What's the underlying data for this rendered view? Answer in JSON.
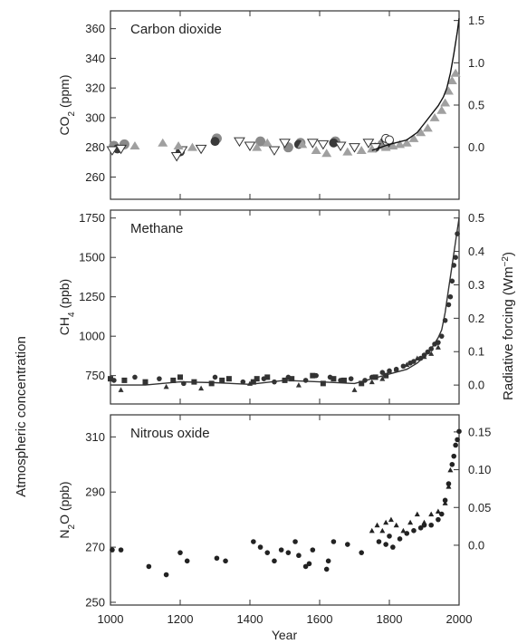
{
  "figure": {
    "left_label": "Atmospheric concentration",
    "right_label": "Radiative forcing  (Wm",
    "right_label_sup": "−2",
    "right_label_close": ")",
    "x_label": "Year"
  },
  "chart_data": [
    {
      "type": "scatter",
      "title": "Carbon dioxide",
      "ylabel_main": "CO",
      "ylabel_sub": "2",
      "ylabel_unit": "  (ppm)",
      "x_ticks": [
        1000,
        1200,
        1400,
        1600,
        1800,
        2000
      ],
      "x_tick_labels": [
        "1000",
        "1200",
        "1400",
        "1600",
        "1800",
        "2000"
      ],
      "xlim": [
        1000,
        2000
      ],
      "ylim": [
        245,
        372
      ],
      "y_ticks": [
        260,
        280,
        300,
        320,
        340,
        360
      ],
      "y_tick_labels": [
        "260",
        "280",
        "300",
        "320",
        "340",
        "360"
      ],
      "y2_ticks": [
        0.0,
        0.5,
        1.0,
        1.5
      ],
      "y2_tick_labels": [
        "0.0",
        "0.5",
        "1.0",
        "1.5"
      ],
      "y2_map": {
        "zero_at": 280,
        "per_unit": 57
      },
      "series": [
        {
          "marker": "circle-gray",
          "color": "#8a8a8a",
          "x": [
            1010,
            1040,
            1305,
            1430,
            1510,
            1545,
            1645,
            1780,
            1790
          ],
          "y": [
            281,
            282,
            286,
            284,
            280,
            283,
            284,
            282,
            281
          ]
        },
        {
          "marker": "circle-dark",
          "color": "#3a3a3a",
          "x": [
            1020,
            1200,
            1300,
            1540,
            1640,
            1760,
            1800
          ],
          "y": [
            279,
            277,
            284,
            282,
            283,
            280,
            283
          ]
        },
        {
          "marker": "triangle-down-open",
          "color": "#333333",
          "x": [
            1005,
            1030,
            1190,
            1205,
            1260,
            1370,
            1400,
            1470,
            1500,
            1580,
            1610,
            1660,
            1700,
            1740,
            1760,
            1790
          ],
          "y": [
            278,
            279,
            274,
            278,
            279,
            284,
            281,
            278,
            283,
            283,
            282,
            281,
            280,
            283,
            280,
            283
          ]
        },
        {
          "marker": "triangle-up-gray",
          "color": "#a0a0a0",
          "x": [
            1070,
            1150,
            1195,
            1235,
            1420,
            1450,
            1550,
            1590,
            1620,
            1680,
            1720,
            1750,
            1790,
            1810,
            1830,
            1850,
            1870,
            1890,
            1910,
            1930,
            1950,
            1960,
            1970,
            1980,
            1990
          ],
          "y": [
            281,
            283,
            281,
            280,
            280,
            283,
            282,
            278,
            276,
            277,
            278,
            279,
            280,
            281,
            282,
            283,
            286,
            290,
            293,
            300,
            305,
            310,
            318,
            325,
            330
          ]
        },
        {
          "marker": "circle-open",
          "color": "#333333",
          "x": [
            1790,
            1800
          ],
          "y": [
            286,
            285
          ]
        },
        {
          "marker": "line",
          "color": "#111111",
          "x": [
            1750,
            1800,
            1850,
            1880,
            1900,
            1920,
            1940,
            1955,
            1965,
            1975,
            1985,
            1995,
            2000
          ],
          "y": [
            278,
            282,
            285,
            290,
            296,
            302,
            308,
            314,
            320,
            330,
            343,
            358,
            367
          ]
        }
      ]
    },
    {
      "type": "scatter",
      "title": "Methane",
      "ylabel_main": "CH",
      "ylabel_sub": "4",
      "ylabel_unit": "  (ppb)",
      "x_ticks": [
        1000,
        1200,
        1400,
        1600,
        1800,
        2000
      ],
      "x_tick_labels": [
        "1000",
        "1200",
        "1400",
        "1600",
        "1800",
        "2000"
      ],
      "xlim": [
        1000,
        2000
      ],
      "ylim": [
        570,
        1800
      ],
      "y_ticks": [
        750,
        1000,
        1250,
        1500,
        1750
      ],
      "y_tick_labels": [
        "750",
        "1000",
        "1250",
        "1500",
        "1750"
      ],
      "y2_ticks": [
        0.0,
        0.1,
        0.2,
        0.3,
        0.4,
        0.5
      ],
      "y2_tick_labels": [
        "0.0",
        "0.1",
        "0.2",
        "0.3",
        "0.4",
        "0.5"
      ],
      "y2_map": {
        "zero_at": 690,
        "per_unit": 2120
      },
      "series": [
        {
          "marker": "square",
          "color": "#333333",
          "x": [
            1000,
            1040,
            1100,
            1180,
            1200,
            1240,
            1290,
            1320,
            1340,
            1410,
            1420,
            1450,
            1500,
            1520,
            1580,
            1610,
            1640,
            1670,
            1720,
            1760,
            1790
          ],
          "y": [
            730,
            720,
            710,
            720,
            740,
            710,
            700,
            720,
            730,
            710,
            730,
            740,
            720,
            730,
            750,
            700,
            730,
            720,
            700,
            740,
            750
          ]
        },
        {
          "marker": "circle-dark",
          "color": "#333333",
          "x": [
            1010,
            1070,
            1140,
            1210,
            1300,
            1380,
            1440,
            1470,
            1510,
            1560,
            1590,
            1630,
            1660,
            1690,
            1730,
            1750,
            1780,
            1800,
            1820,
            1840,
            1860,
            1870,
            1890,
            1900,
            1910,
            1920,
            1930,
            1940,
            1950,
            1960,
            1970,
            1975,
            1980,
            1985,
            1990,
            1995
          ],
          "y": [
            720,
            740,
            730,
            700,
            740,
            710,
            730,
            710,
            740,
            720,
            750,
            740,
            720,
            730,
            720,
            740,
            770,
            780,
            790,
            810,
            830,
            840,
            860,
            880,
            900,
            920,
            950,
            960,
            1000,
            1100,
            1200,
            1250,
            1350,
            1450,
            1500,
            1650
          ]
        },
        {
          "marker": "triangle-up",
          "color": "#333333",
          "x": [
            1030,
            1160,
            1260,
            1400,
            1540,
            1700,
            1750,
            1780,
            1800,
            1820,
            1850,
            1880,
            1900,
            1920,
            1940
          ],
          "y": [
            660,
            680,
            670,
            700,
            690,
            660,
            710,
            730,
            780,
            790,
            820,
            860,
            870,
            890,
            930
          ]
        },
        {
          "marker": "line",
          "color": "#333333",
          "x": [
            1000,
            1100,
            1200,
            1300,
            1400,
            1500,
            1600,
            1700,
            1750,
            1800,
            1850,
            1880,
            1900,
            1920,
            1940,
            1950,
            1960,
            1970,
            1980,
            1990,
            2000
          ],
          "y": [
            690,
            690,
            710,
            705,
            695,
            720,
            710,
            700,
            730,
            760,
            790,
            830,
            870,
            920,
            990,
            1040,
            1150,
            1300,
            1450,
            1600,
            1750
          ]
        }
      ]
    },
    {
      "type": "scatter",
      "title": "Nitrous oxide",
      "ylabel_main": "N",
      "ylabel_sub": "2",
      "ylabel_after": "O  (ppb)",
      "x_ticks": [
        1000,
        1200,
        1400,
        1600,
        1800,
        2000
      ],
      "x_tick_labels": [
        "1000",
        "1200",
        "1400",
        "1600",
        "1800",
        "2000"
      ],
      "xlim": [
        1000,
        2000
      ],
      "ylim": [
        249,
        318
      ],
      "y_ticks": [
        250,
        270,
        290,
        310
      ],
      "y_tick_labels": [
        "250",
        "270",
        "290",
        "310"
      ],
      "y2_ticks": [
        0.0,
        0.05,
        0.1,
        0.15
      ],
      "y2_tick_labels": [
        "0.0",
        "0.05",
        "0.10",
        "0.15"
      ],
      "y2_map": {
        "zero_at": 270.7,
        "per_unit": 274
      },
      "series": [
        {
          "marker": "circle-dark",
          "color": "#222222",
          "x": [
            1005,
            1030,
            1110,
            1160,
            1200,
            1220,
            1305,
            1330,
            1410,
            1430,
            1450,
            1470,
            1490,
            1510,
            1530,
            1540,
            1560,
            1570,
            1580,
            1620,
            1625,
            1640,
            1680,
            1720,
            1770,
            1790,
            1800,
            1810,
            1830,
            1850,
            1870,
            1890,
            1900,
            1920,
            1940,
            1950,
            1960,
            1970,
            1980,
            1985,
            1990,
            1995,
            2000
          ],
          "y": [
            269,
            269,
            263,
            260,
            268,
            265,
            266,
            265,
            272,
            270,
            268,
            265,
            269,
            268,
            272,
            267,
            263,
            264,
            269,
            262,
            265,
            272,
            271,
            268,
            272,
            271,
            274,
            270,
            273,
            275,
            276,
            277,
            278,
            278,
            280,
            282,
            287,
            293,
            300,
            303,
            307,
            309,
            312
          ]
        },
        {
          "marker": "triangle-up",
          "color": "#222222",
          "x": [
            1750,
            1765,
            1780,
            1790,
            1805,
            1820,
            1840,
            1860,
            1880,
            1900,
            1920,
            1940,
            1960,
            1970,
            1975
          ],
          "y": [
            276,
            278,
            276,
            279,
            280,
            278,
            276,
            279,
            282,
            279,
            282,
            283,
            286,
            292,
            298
          ]
        }
      ]
    }
  ]
}
